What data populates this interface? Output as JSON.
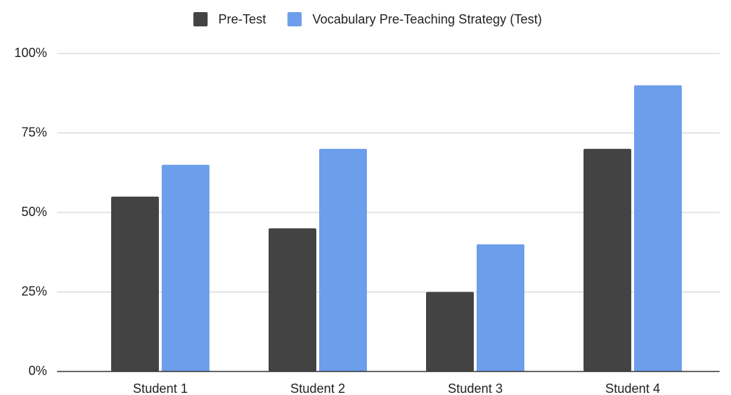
{
  "chart_data": {
    "type": "bar",
    "categories": [
      "Student 1",
      "Student 2",
      "Student 3",
      "Student 4"
    ],
    "series": [
      {
        "name": "Pre-Test",
        "color": "#434343",
        "values": [
          55,
          45,
          25,
          70
        ]
      },
      {
        "name": "Vocabulary Pre-Teaching Strategy (Test)",
        "color": "#6d9eeb",
        "values": [
          65,
          70,
          40,
          90
        ]
      }
    ],
    "ylim": [
      0,
      100
    ],
    "yticks": [
      {
        "value": 0,
        "label": "0%"
      },
      {
        "value": 25,
        "label": "25%"
      },
      {
        "value": 50,
        "label": "50%"
      },
      {
        "value": 75,
        "label": "75%"
      },
      {
        "value": 100,
        "label": "100%"
      }
    ],
    "grid": true,
    "legend": "top"
  }
}
